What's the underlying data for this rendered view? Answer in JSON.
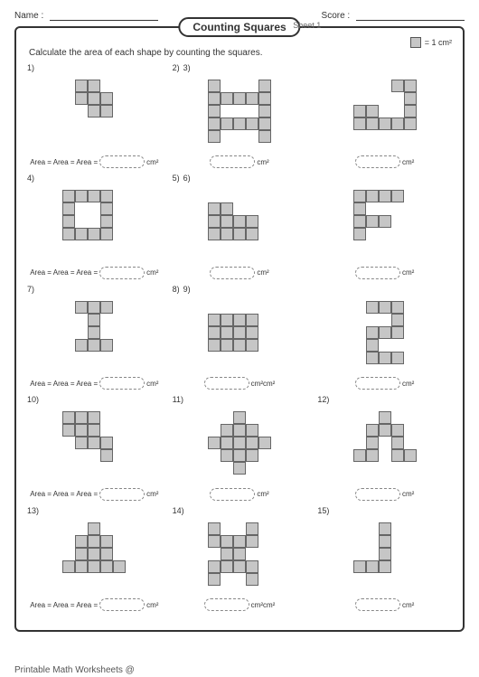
{
  "header": {
    "name_label": "Name :",
    "score_label": "Score :"
  },
  "title": "Counting Squares",
  "sheet_label": "Sheet 1",
  "legend_text": "= 1 cm²",
  "instruction": "Calculate the area of each shape by counting the squares.",
  "unit": "cm²",
  "area_label": "Area =",
  "area_label_overlap": "Area = Area = Area =",
  "unit_overlap": "cm²cm²",
  "footer": "Printable Math Worksheets @",
  "square_style": {
    "fill": "#c6c6c6",
    "border": "#666666"
  },
  "problems": [
    {
      "n": "1)",
      "n2": "",
      "ans": "overlap",
      "u": "cm²",
      "cells": [
        [
          0,
          1,
          1,
          0,
          0
        ],
        [
          0,
          1,
          1,
          1,
          0
        ],
        [
          0,
          0,
          1,
          1,
          0
        ],
        [
          0,
          0,
          0,
          0,
          0
        ],
        [
          0,
          0,
          0,
          0,
          0
        ]
      ]
    },
    {
      "n": "2)",
      "n2": "3)",
      "ans": "blank",
      "u": "cm²",
      "cells": [
        [
          1,
          0,
          0,
          0,
          1
        ],
        [
          1,
          1,
          1,
          1,
          1
        ],
        [
          1,
          0,
          0,
          0,
          1
        ],
        [
          1,
          1,
          1,
          1,
          1
        ],
        [
          1,
          0,
          0,
          0,
          1
        ]
      ]
    },
    {
      "n": "",
      "n2": "",
      "ans": "blank",
      "u": "cm²",
      "cells": [
        [
          0,
          0,
          0,
          1,
          1
        ],
        [
          0,
          0,
          0,
          0,
          1
        ],
        [
          1,
          1,
          0,
          0,
          1
        ],
        [
          1,
          1,
          1,
          1,
          1
        ],
        [
          0,
          0,
          0,
          0,
          0
        ]
      ]
    },
    {
      "n": "4)",
      "n2": "",
      "ans": "overlap",
      "u": "cm²",
      "cells": [
        [
          1,
          1,
          1,
          1,
          0
        ],
        [
          1,
          0,
          0,
          1,
          0
        ],
        [
          1,
          0,
          0,
          1,
          0
        ],
        [
          1,
          1,
          1,
          1,
          0
        ],
        [
          0,
          0,
          0,
          0,
          0
        ]
      ]
    },
    {
      "n": "5)",
      "n2": "6)",
      "ans": "blank",
      "u": "cm²",
      "cells": [
        [
          0,
          0,
          0,
          0,
          0
        ],
        [
          1,
          1,
          0,
          0,
          0
        ],
        [
          1,
          1,
          1,
          1,
          0
        ],
        [
          1,
          1,
          1,
          1,
          0
        ],
        [
          0,
          0,
          0,
          0,
          0
        ]
      ]
    },
    {
      "n": "",
      "n2": "",
      "ans": "blank",
      "u": "cm²",
      "cells": [
        [
          1,
          1,
          1,
          1,
          0
        ],
        [
          1,
          0,
          0,
          0,
          0
        ],
        [
          1,
          1,
          1,
          0,
          0
        ],
        [
          1,
          0,
          0,
          0,
          0
        ],
        [
          0,
          0,
          0,
          0,
          0
        ]
      ]
    },
    {
      "n": "7)",
      "n2": "",
      "ans": "overlap",
      "u": "cm²",
      "cells": [
        [
          0,
          1,
          1,
          1,
          0
        ],
        [
          0,
          0,
          1,
          0,
          0
        ],
        [
          0,
          0,
          1,
          0,
          0
        ],
        [
          0,
          1,
          1,
          1,
          0
        ],
        [
          0,
          0,
          0,
          0,
          0
        ]
      ]
    },
    {
      "n": "8)",
      "n2": "9)",
      "ans": "blank",
      "u": "cm²cm²",
      "cells": [
        [
          0,
          0,
          0,
          0,
          0
        ],
        [
          1,
          1,
          1,
          1,
          0
        ],
        [
          1,
          1,
          1,
          1,
          0
        ],
        [
          1,
          1,
          1,
          1,
          0
        ],
        [
          0,
          0,
          0,
          0,
          0
        ]
      ]
    },
    {
      "n": "",
      "n2": "",
      "ans": "blank",
      "u": "cm²",
      "cells": [
        [
          0,
          1,
          1,
          1,
          0
        ],
        [
          0,
          0,
          0,
          1,
          0
        ],
        [
          0,
          1,
          1,
          1,
          0
        ],
        [
          0,
          1,
          0,
          0,
          0
        ],
        [
          0,
          1,
          1,
          1,
          0
        ]
      ]
    },
    {
      "n": "10)",
      "n2": "",
      "ans": "overlap",
      "u": "cm²",
      "cells": [
        [
          1,
          1,
          1,
          0,
          0
        ],
        [
          1,
          1,
          1,
          0,
          0
        ],
        [
          0,
          1,
          1,
          1,
          0
        ],
        [
          0,
          0,
          0,
          1,
          0
        ],
        [
          0,
          0,
          0,
          0,
          0
        ]
      ]
    },
    {
      "n": "11)",
      "n2": "",
      "ans": "blank",
      "u": "cm²",
      "cells": [
        [
          0,
          0,
          1,
          0,
          0
        ],
        [
          0,
          1,
          1,
          1,
          0
        ],
        [
          1,
          1,
          1,
          1,
          1
        ],
        [
          0,
          1,
          1,
          1,
          0
        ],
        [
          0,
          0,
          1,
          0,
          0
        ]
      ]
    },
    {
      "n": "12)",
      "n2": "",
      "ans": "blank",
      "u": "cm²",
      "cells": [
        [
          0,
          0,
          1,
          0,
          0
        ],
        [
          0,
          1,
          1,
          1,
          0
        ],
        [
          0,
          1,
          0,
          1,
          0
        ],
        [
          1,
          1,
          0,
          1,
          1
        ],
        [
          0,
          0,
          0,
          0,
          0
        ]
      ]
    },
    {
      "n": "13)",
      "n2": "",
      "ans": "overlap",
      "u": "cm²",
      "cells": [
        [
          0,
          0,
          1,
          0,
          0
        ],
        [
          0,
          1,
          1,
          1,
          0
        ],
        [
          0,
          1,
          1,
          1,
          0
        ],
        [
          1,
          1,
          1,
          1,
          1
        ],
        [
          0,
          0,
          0,
          0,
          0
        ]
      ]
    },
    {
      "n": "14)",
      "n2": "",
      "ans": "blank",
      "u": "cm²cm²",
      "cells": [
        [
          1,
          0,
          0,
          1,
          0
        ],
        [
          1,
          1,
          1,
          1,
          0
        ],
        [
          0,
          1,
          1,
          0,
          0
        ],
        [
          1,
          1,
          1,
          1,
          0
        ],
        [
          1,
          0,
          0,
          1,
          0
        ]
      ]
    },
    {
      "n": "15)",
      "n2": "",
      "ans": "blank",
      "u": "cm²",
      "cells": [
        [
          0,
          0,
          1,
          0,
          0
        ],
        [
          0,
          0,
          1,
          0,
          0
        ],
        [
          0,
          0,
          1,
          0,
          0
        ],
        [
          1,
          1,
          1,
          0,
          0
        ],
        [
          0,
          0,
          0,
          0,
          0
        ]
      ]
    }
  ]
}
